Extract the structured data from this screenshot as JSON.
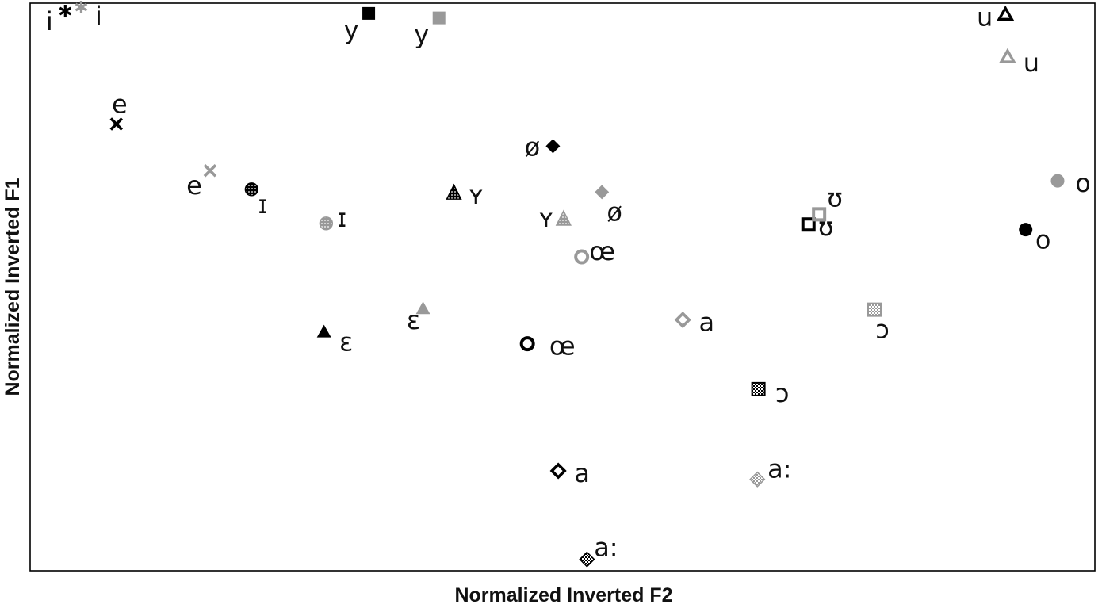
{
  "chart_data": {
    "type": "scatter",
    "title": "",
    "xlabel": "Normalized Inverted F2",
    "ylabel": "Normalized Inverted F1",
    "xlim": [
      0,
      1
    ],
    "ylim": [
      0,
      1
    ],
    "grid": false,
    "legend": "none",
    "colors": {
      "dark": "#000000",
      "grey": "#999999",
      "frame": "#000000"
    },
    "points": [
      {
        "label": "i",
        "x": 0.033,
        "y": 0.986,
        "marker": "asterisk",
        "color": "#000000"
      },
      {
        "label": "i",
        "x": 0.048,
        "y": 0.993,
        "marker": "asterisk",
        "color": "#999999"
      },
      {
        "label": "y",
        "x": 0.318,
        "y": 0.982,
        "marker": "square",
        "color": "#000000"
      },
      {
        "label": "y",
        "x": 0.384,
        "y": 0.974,
        "marker": "square",
        "color": "#999999"
      },
      {
        "label": "u",
        "x": 0.916,
        "y": 0.98,
        "marker": "triangle-open",
        "color": "#000000"
      },
      {
        "label": "u",
        "x": 0.918,
        "y": 0.905,
        "marker": "triangle-open",
        "color": "#999999"
      },
      {
        "label": "e",
        "x": 0.081,
        "y": 0.787,
        "marker": "x",
        "color": "#000000"
      },
      {
        "label": "e",
        "x": 0.169,
        "y": 0.705,
        "marker": "x",
        "color": "#999999"
      },
      {
        "label": "ø",
        "x": 0.491,
        "y": 0.748,
        "marker": "diamond",
        "color": "#000000"
      },
      {
        "label": "ø",
        "x": 0.537,
        "y": 0.667,
        "marker": "diamond",
        "color": "#999999"
      },
      {
        "label": "ɪ",
        "x": 0.208,
        "y": 0.672,
        "marker": "dotted-circle",
        "color": "#000000"
      },
      {
        "label": "ɪ",
        "x": 0.278,
        "y": 0.612,
        "marker": "dotted-circle",
        "color": "#999999"
      },
      {
        "label": "ʏ",
        "x": 0.398,
        "y": 0.666,
        "marker": "dotted-triangle",
        "color": "#000000"
      },
      {
        "label": "ʏ",
        "x": 0.501,
        "y": 0.62,
        "marker": "dotted-triangle",
        "color": "#999999"
      },
      {
        "label": "o",
        "x": 0.965,
        "y": 0.687,
        "marker": "circle",
        "color": "#999999"
      },
      {
        "label": "o",
        "x": 0.935,
        "y": 0.601,
        "marker": "circle",
        "color": "#000000"
      },
      {
        "label": "ʊ",
        "x": 0.731,
        "y": 0.61,
        "marker": "square-open",
        "color": "#000000"
      },
      {
        "label": "ʊ",
        "x": 0.741,
        "y": 0.628,
        "marker": "square-open",
        "color": "#999999"
      },
      {
        "label": "œ",
        "x": 0.518,
        "y": 0.553,
        "marker": "circle-open",
        "color": "#999999"
      },
      {
        "label": "œ",
        "x": 0.467,
        "y": 0.4,
        "marker": "circle-open",
        "color": "#000000"
      },
      {
        "label": "a",
        "x": 0.613,
        "y": 0.442,
        "marker": "diamond-open",
        "color": "#999999"
      },
      {
        "label": "a",
        "x": 0.496,
        "y": 0.176,
        "marker": "diamond-open",
        "color": "#000000"
      },
      {
        "label": "ɛ",
        "x": 0.276,
        "y": 0.421,
        "marker": "triangle",
        "color": "#000000"
      },
      {
        "label": "ɛ",
        "x": 0.369,
        "y": 0.462,
        "marker": "triangle",
        "color": "#999999"
      },
      {
        "label": "ɔ",
        "x": 0.793,
        "y": 0.46,
        "marker": "checker-square",
        "color": "#999999"
      },
      {
        "label": "ɔ",
        "x": 0.684,
        "y": 0.32,
        "marker": "checker-square",
        "color": "#000000"
      },
      {
        "label": "a:",
        "x": 0.683,
        "y": 0.161,
        "marker": "checker-diamond",
        "color": "#999999"
      },
      {
        "label": "a:",
        "x": 0.523,
        "y": 0.02,
        "marker": "checker-diamond",
        "color": "#000000"
      }
    ]
  }
}
